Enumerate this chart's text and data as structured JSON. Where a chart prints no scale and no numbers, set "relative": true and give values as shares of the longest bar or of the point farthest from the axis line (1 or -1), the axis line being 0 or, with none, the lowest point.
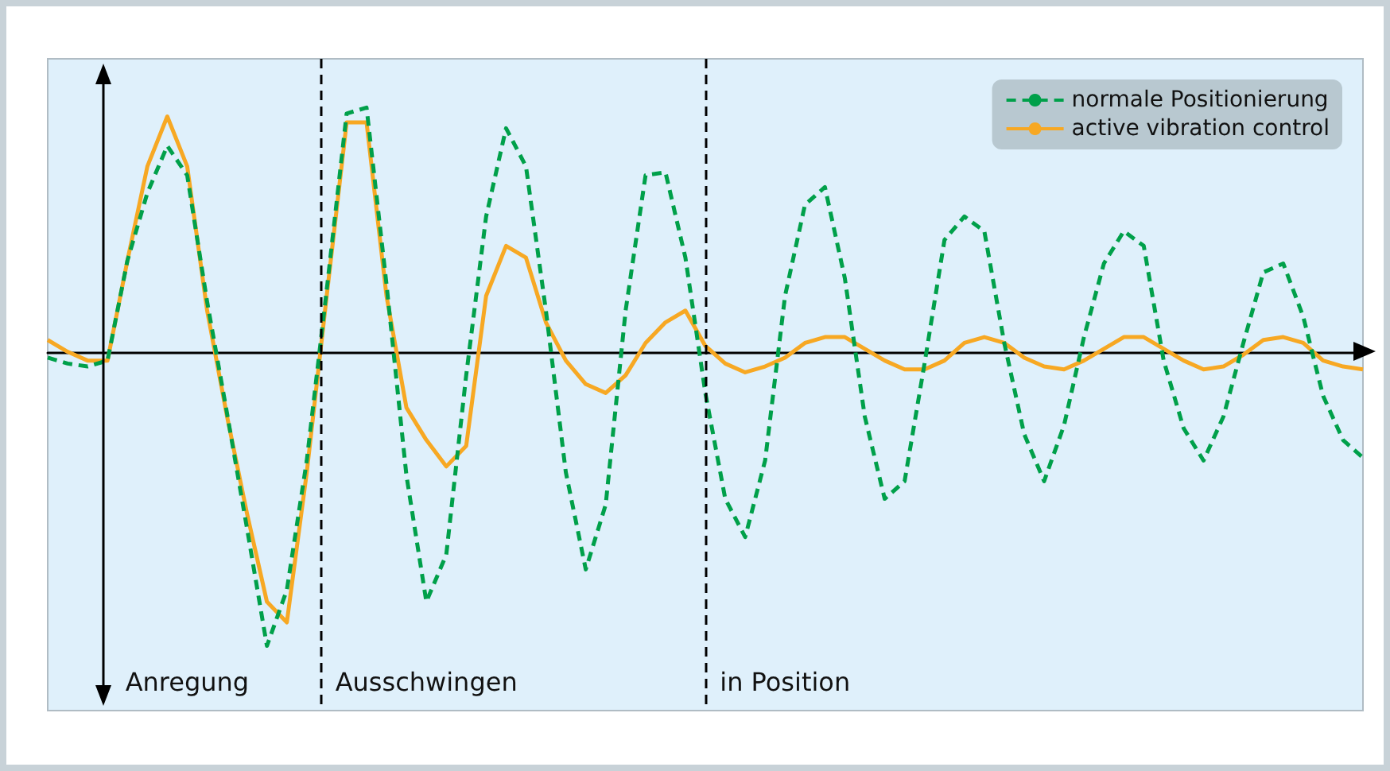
{
  "chart_data": {
    "type": "line",
    "relative": true,
    "categories": [
      null,
      null,
      null,
      null,
      null,
      null,
      null,
      "Anregung",
      null,
      null,
      null,
      null,
      null,
      null,
      null,
      null,
      null,
      null,
      null,
      "Ausschwingen",
      null,
      null,
      null,
      null,
      null,
      null,
      null,
      null,
      null,
      null,
      null,
      null,
      null,
      null,
      null,
      null,
      null,
      "in Position",
      null,
      null,
      null,
      null,
      null,
      null,
      null,
      null,
      null,
      null,
      null,
      null,
      null,
      null,
      null,
      null,
      null,
      null,
      null,
      null,
      null,
      null,
      null,
      null,
      null,
      null,
      null,
      null,
      null
    ],
    "series": [
      {
        "name": "normale Positionierung",
        "color": "#00a04a",
        "line_style": "dashed",
        "values": [
          -0.02,
          -0.04,
          -0.05,
          -0.03,
          0.31,
          0.54,
          0.7,
          0.6,
          0.17,
          -0.21,
          -0.6,
          -1,
          -0.81,
          -0.37,
          0.21,
          0.81,
          0.83,
          0.23,
          -0.42,
          -0.85,
          -0.69,
          -0.08,
          0.46,
          0.76,
          0.63,
          0.14,
          -0.41,
          -0.74,
          -0.52,
          0.14,
          0.6,
          0.61,
          0.32,
          -0.14,
          -0.5,
          -0.63,
          -0.37,
          0.19,
          0.5,
          0.56,
          0.25,
          -0.22,
          -0.5,
          -0.44,
          -0.04,
          0.38,
          0.46,
          0.41,
          0.03,
          -0.28,
          -0.44,
          -0.25,
          0.05,
          0.3,
          0.41,
          0.36,
          -0.03,
          -0.26,
          -0.37,
          -0.22,
          0.03,
          0.27,
          0.3,
          0.12,
          -0.15,
          -0.3,
          -0.36
        ]
      },
      {
        "name": "active vibration control",
        "color": "#f7a823",
        "line_style": "solid",
        "values": [
          0.04,
          0,
          -0.03,
          -0.03,
          0.31,
          0.63,
          0.8,
          0.63,
          0.14,
          -0.22,
          -0.55,
          -0.85,
          -0.92,
          -0.41,
          0.19,
          0.78,
          0.78,
          0.19,
          -0.19,
          -0.3,
          -0.39,
          -0.32,
          0.19,
          0.36,
          0.32,
          0.1,
          -0.03,
          -0.11,
          -0.14,
          -0.08,
          0.03,
          0.1,
          0.14,
          0.02,
          -0.04,
          -0.07,
          -0.05,
          -0.02,
          0.03,
          0.05,
          0.05,
          0.01,
          -0.03,
          -0.06,
          -0.06,
          -0.03,
          0.03,
          0.05,
          0.03,
          -0.02,
          -0.05,
          -0.06,
          -0.03,
          0.01,
          0.05,
          0.05,
          0.01,
          -0.03,
          -0.06,
          -0.05,
          -0.01,
          0.04,
          0.05,
          0.03,
          -0.03,
          -0.05,
          -0.06
        ]
      }
    ],
    "legend": "top right",
    "marker": "none",
    "tick_labels": "x"
  }
}
